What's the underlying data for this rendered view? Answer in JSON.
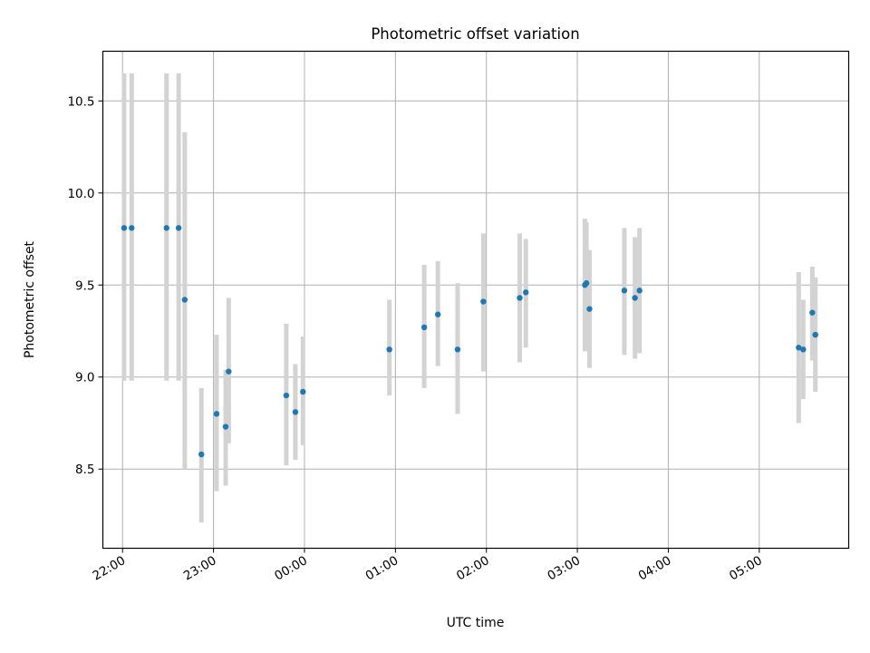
{
  "chart_data": {
    "type": "scatter",
    "title": "Photometric offset variation",
    "xlabel": "UTC time",
    "ylabel": "Photometric offset",
    "x_ticks": [
      "22:00",
      "23:00",
      "00:00",
      "01:00",
      "02:00",
      "03:00",
      "04:00",
      "05:00"
    ],
    "y_ticks": [
      "8.5",
      "9.0",
      "9.5",
      "10.0",
      "10.5"
    ],
    "grid": true,
    "colors": {
      "point": "#1f77b4",
      "errorbar": "#d3d3d3",
      "grid": "#b0b0b0"
    },
    "xlim": [
      "2000-01-01T21:47",
      "2000-01-02T05:59"
    ],
    "ylim": [
      8.07,
      10.77
    ],
    "points": [
      {
        "x": "2000-01-01T22:01",
        "y": 9.81,
        "ymin": 8.98,
        "ymax": 10.65
      },
      {
        "x": "2000-01-01T22:06",
        "y": 9.81,
        "ymin": 8.98,
        "ymax": 10.65
      },
      {
        "x": "2000-01-01T22:29",
        "y": 9.81,
        "ymin": 8.98,
        "ymax": 10.65
      },
      {
        "x": "2000-01-01T22:37",
        "y": 9.81,
        "ymin": 8.98,
        "ymax": 10.65
      },
      {
        "x": "2000-01-01T22:41",
        "y": 9.42,
        "ymin": 8.5,
        "ymax": 10.33
      },
      {
        "x": "2000-01-01T22:52",
        "y": 8.58,
        "ymin": 8.21,
        "ymax": 8.94
      },
      {
        "x": "2000-01-01T23:02",
        "y": 8.8,
        "ymin": 8.38,
        "ymax": 9.23
      },
      {
        "x": "2000-01-01T23:08",
        "y": 8.73,
        "ymin": 8.41,
        "ymax": 9.04
      },
      {
        "x": "2000-01-01T23:10",
        "y": 9.03,
        "ymin": 8.64,
        "ymax": 9.43
      },
      {
        "x": "2000-01-01T23:48",
        "y": 8.9,
        "ymin": 8.52,
        "ymax": 9.29
      },
      {
        "x": "2000-01-01T23:54",
        "y": 8.81,
        "ymin": 8.55,
        "ymax": 9.07
      },
      {
        "x": "2000-01-01T23:59",
        "y": 8.92,
        "ymin": 8.63,
        "ymax": 9.22
      },
      {
        "x": "2000-01-02T00:56",
        "y": 9.15,
        "ymin": 8.9,
        "ymax": 9.42
      },
      {
        "x": "2000-01-02T01:19",
        "y": 9.27,
        "ymin": 8.94,
        "ymax": 9.61
      },
      {
        "x": "2000-01-02T01:28",
        "y": 9.34,
        "ymin": 9.06,
        "ymax": 9.63
      },
      {
        "x": "2000-01-02T01:41",
        "y": 9.15,
        "ymin": 8.8,
        "ymax": 9.51
      },
      {
        "x": "2000-01-02T01:58",
        "y": 9.41,
        "ymin": 9.03,
        "ymax": 9.78
      },
      {
        "x": "2000-01-02T02:22",
        "y": 9.43,
        "ymin": 9.08,
        "ymax": 9.78
      },
      {
        "x": "2000-01-02T02:26",
        "y": 9.46,
        "ymin": 9.16,
        "ymax": 9.75
      },
      {
        "x": "2000-01-02T03:05",
        "y": 9.5,
        "ymin": 9.14,
        "ymax": 9.86
      },
      {
        "x": "2000-01-02T03:06",
        "y": 9.51,
        "ymin": 9.18,
        "ymax": 9.84
      },
      {
        "x": "2000-01-02T03:08",
        "y": 9.37,
        "ymin": 9.05,
        "ymax": 9.69
      },
      {
        "x": "2000-01-02T03:31",
        "y": 9.47,
        "ymin": 9.12,
        "ymax": 9.81
      },
      {
        "x": "2000-01-02T03:38",
        "y": 9.43,
        "ymin": 9.1,
        "ymax": 9.76
      },
      {
        "x": "2000-01-02T03:41",
        "y": 9.47,
        "ymin": 9.13,
        "ymax": 9.81
      },
      {
        "x": "2000-01-02T05:26",
        "y": 9.16,
        "ymin": 8.75,
        "ymax": 9.57
      },
      {
        "x": "2000-01-02T05:29",
        "y": 9.15,
        "ymin": 8.88,
        "ymax": 9.42
      },
      {
        "x": "2000-01-02T05:35",
        "y": 9.35,
        "ymin": 9.09,
        "ymax": 9.6
      },
      {
        "x": "2000-01-02T05:37",
        "y": 9.23,
        "ymin": 8.92,
        "ymax": 9.54
      }
    ]
  }
}
